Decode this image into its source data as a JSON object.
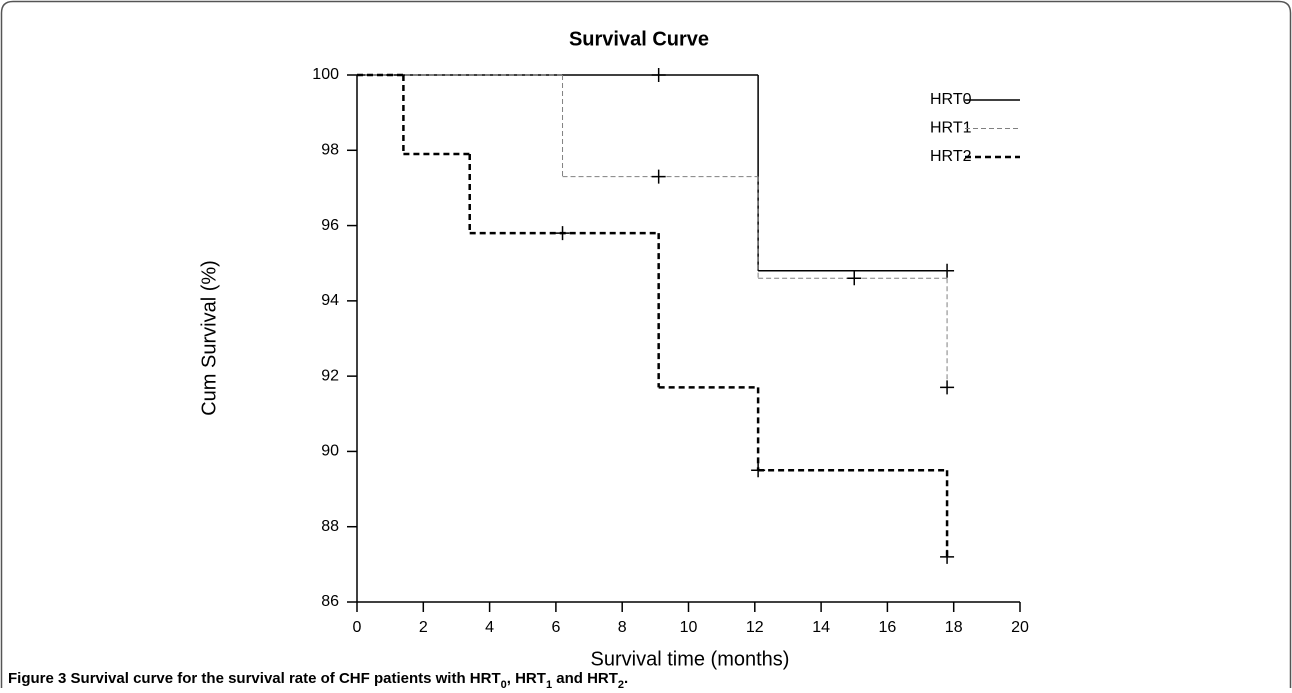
{
  "chart_data": {
    "type": "step",
    "title": "Survival Curve",
    "x_label": "Survival time (months)",
    "y_label": "Cum Survival (%)",
    "xlim": [
      0,
      20
    ],
    "xticks": [
      0,
      2,
      4,
      6,
      8,
      10,
      12,
      14,
      16,
      18,
      20
    ],
    "ylim": [
      86,
      100
    ],
    "yticks": [
      86,
      88,
      90,
      92,
      94,
      96,
      98,
      100
    ],
    "legend": "upper right",
    "series": [
      {
        "name": "HRT0",
        "color": "#000000",
        "linestyle": "solid",
        "linewidth": 1.5,
        "x": [
          0,
          12.1,
          17.8
        ],
        "values": [
          100,
          94.8,
          94.8
        ],
        "censored": {
          "x": [
            9.1,
            17.8
          ],
          "values": [
            100,
            94.8
          ]
        }
      },
      {
        "name": "HRT1",
        "color": "#808080",
        "linestyle": "dashed",
        "linewidth": 1,
        "x": [
          0,
          6.2,
          12.1,
          17.8
        ],
        "values": [
          100,
          97.3,
          94.6,
          91.7
        ],
        "censored": {
          "x": [
            9.1,
            15,
            17.8
          ],
          "values": [
            97.3,
            94.6,
            91.7
          ]
        }
      },
      {
        "name": "HRT2",
        "color": "#000000",
        "linestyle": "dashed",
        "linewidth": 2.5,
        "x": [
          0,
          1.4,
          3.4,
          9.1,
          12.1,
          17.8
        ],
        "values": [
          100,
          97.9,
          95.8,
          91.7,
          89.5,
          87.2
        ],
        "censored": {
          "x": [
            6.2,
            12.1,
            17.8
          ],
          "values": [
            95.8,
            89.5,
            87.2
          ]
        }
      }
    ]
  },
  "caption": {
    "label": "Figure 3",
    "parts": [
      "Survival curve for the survival rate of CHF patients with HRT",
      "0",
      ", HRT",
      "1",
      " and HRT",
      "2",
      "."
    ]
  }
}
